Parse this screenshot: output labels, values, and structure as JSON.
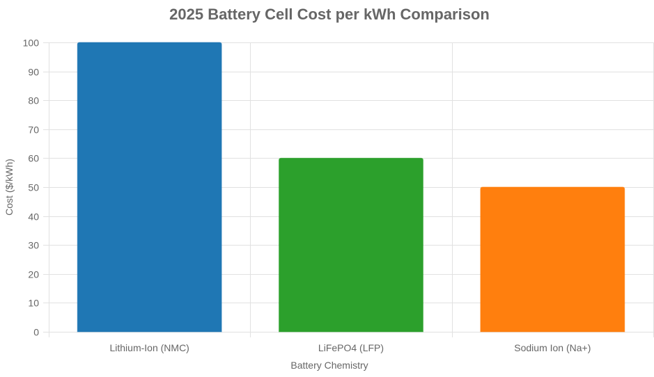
{
  "chart_data": {
    "type": "bar",
    "title": "2025 Battery Cell Cost per kWh Comparison",
    "xlabel": "Battery Chemistry",
    "ylabel": "Cost ($/kWh)",
    "categories": [
      "Lithium-Ion (NMC)",
      "LiFePO4 (LFP)",
      "Sodium Ion (Na+)"
    ],
    "values": [
      100,
      60,
      50
    ],
    "colors": [
      "#1f77b4",
      "#2ca02c",
      "#ff7f0e"
    ],
    "ylim": [
      0,
      100
    ],
    "yticks": [
      0,
      10,
      20,
      30,
      40,
      50,
      60,
      70,
      80,
      90,
      100
    ],
    "grid": true,
    "legend": "none"
  }
}
